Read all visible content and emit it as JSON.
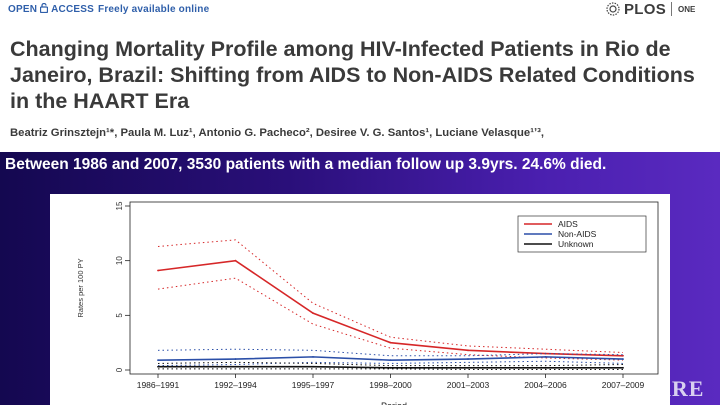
{
  "header": {
    "open_access_prefix": "OPEN",
    "open_access_word": "ACCESS",
    "freely_available": "Freely available online",
    "plos_logo": "PLOS",
    "plos_journal": "ONE"
  },
  "paper": {
    "title": "Changing Mortality Profile among HIV-Infected Patients in Rio de Janeiro, Brazil: Shifting from AIDS to Non-AIDS Related Conditions in the HAART Era",
    "authors": "Beatriz Grinsztejn¹*, Paula M. Luz¹, Antonio G. Pacheco², Desiree V. G. Santos¹, Luciane Velasque¹ʼ³,"
  },
  "slide": {
    "caption": "Between 1986 and 2007, 3530 patients with a median follow up 3.9yrs. 24.6% died.",
    "brand_fragment": "ARE"
  },
  "colors": {
    "aids": "#d62728",
    "non_aids": "#2b4fa8",
    "unknown": "#111111",
    "slide_bg": "#2a0f7a",
    "oa_blue": "#2f5faa"
  },
  "chart_data": {
    "type": "line",
    "ylabel": "Rates per 100 PY",
    "xlabel": "Period",
    "ylim": [
      0,
      15
    ],
    "yticks": [
      0,
      5,
      10,
      15
    ],
    "categories": [
      "1986–1991",
      "1992–1994",
      "1995–1997",
      "1998–2000",
      "2001–2003",
      "2004–2006",
      "2007–2009"
    ],
    "legend": {
      "placement": "top-right"
    },
    "series": [
      {
        "name": "AIDS",
        "color_key": "aids",
        "values": [
          9.1,
          10.0,
          5.2,
          2.5,
          1.8,
          1.5,
          1.3
        ],
        "lower": [
          7.4,
          8.4,
          4.2,
          2.0,
          1.4,
          1.1,
          0.9
        ],
        "upper": [
          11.3,
          11.9,
          6.1,
          3.0,
          2.2,
          1.9,
          1.6
        ]
      },
      {
        "name": "Non-AIDS",
        "color_key": "non_aids",
        "values": [
          0.9,
          1.0,
          1.2,
          0.9,
          1.0,
          1.2,
          1.0
        ],
        "lower": [
          0.4,
          0.5,
          0.7,
          0.6,
          0.7,
          0.8,
          0.6
        ],
        "upper": [
          1.8,
          1.9,
          1.8,
          1.3,
          1.3,
          1.5,
          1.4
        ]
      },
      {
        "name": "Unknown",
        "color_key": "unknown",
        "values": [
          0.3,
          0.3,
          0.3,
          0.2,
          0.2,
          0.2,
          0.2
        ],
        "lower": [
          0.1,
          0.1,
          0.1,
          0.1,
          0.05,
          0.05,
          0.05
        ],
        "upper": [
          0.6,
          0.7,
          0.6,
          0.4,
          0.4,
          0.4,
          0.5
        ]
      }
    ]
  }
}
